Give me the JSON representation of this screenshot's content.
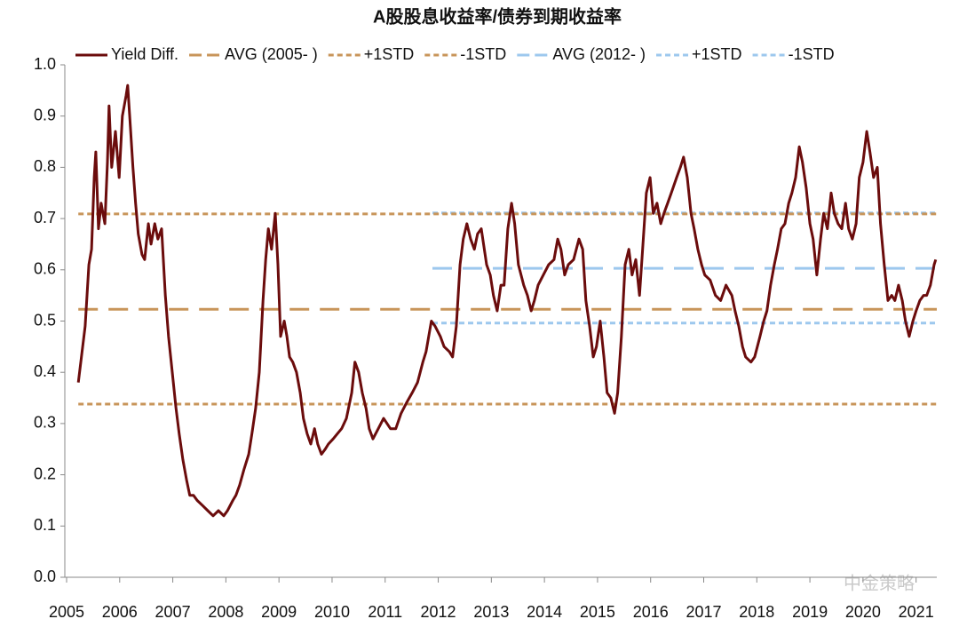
{
  "chart_data": {
    "type": "line",
    "title": "A股股息收益率/债券到期收益率",
    "watermark": "中金策略",
    "xlim": [
      2005,
      2021.39
    ],
    "xticks": [
      2005,
      2006,
      2007,
      2008,
      2009,
      2010,
      2011,
      2012,
      2013,
      2014,
      2015,
      2016,
      2017,
      2018,
      2019,
      2020,
      2021
    ],
    "ylim": [
      0,
      1
    ],
    "yticks": [
      {
        "value": 0,
        "label": "0.0"
      },
      0.1,
      0.2,
      0.3,
      0.4,
      0.5,
      0.6,
      0.7,
      0.8,
      0.9,
      {
        "value": 1,
        "label": "1.0"
      }
    ],
    "grid": false,
    "legend": "top",
    "series": [
      {
        "name": "Yield Diff.",
        "color": "#6b0c0c",
        "style": "solid",
        "x": [
          2005.22,
          2005.28,
          2005.35,
          2005.42,
          2005.47,
          2005.52,
          2005.55,
          2005.6,
          2005.65,
          2005.72,
          2005.77,
          2005.8,
          2005.85,
          2005.92,
          2005.99,
          2006.05,
          2006.12,
          2006.15,
          2006.2,
          2006.25,
          2006.3,
          2006.35,
          2006.42,
          2006.47,
          2006.54,
          2006.59,
          2006.66,
          2006.72,
          2006.79,
          2006.86,
          2006.92,
          2006.99,
          2007.06,
          2007.12,
          2007.19,
          2007.26,
          2007.32,
          2007.39,
          2007.46,
          2007.56,
          2007.66,
          2007.76,
          2007.86,
          2007.96,
          2008.03,
          2008.13,
          2008.19,
          2008.26,
          2008.34,
          2008.43,
          2008.49,
          2008.56,
          2008.63,
          2008.7,
          2008.75,
          2008.8,
          2008.86,
          2008.93,
          2008.98,
          2009.03,
          2009.1,
          2009.15,
          2009.2,
          2009.26,
          2009.33,
          2009.4,
          2009.46,
          2009.53,
          2009.6,
          2009.67,
          2009.73,
          2009.8,
          2009.87,
          2009.93,
          2010.02,
          2010.1,
          2010.18,
          2010.27,
          2010.37,
          2010.43,
          2010.5,
          2010.57,
          2010.64,
          2010.7,
          2010.77,
          2010.87,
          2010.97,
          2011.1,
          2011.2,
          2011.3,
          2011.4,
          2011.51,
          2011.61,
          2011.71,
          2011.77,
          2011.87,
          2011.94,
          2012.04,
          2012.11,
          2012.21,
          2012.27,
          2012.34,
          2012.41,
          2012.47,
          2012.54,
          2012.61,
          2012.68,
          2012.74,
          2012.81,
          2012.91,
          2012.98,
          2013.04,
          2013.11,
          2013.18,
          2013.24,
          2013.31,
          2013.38,
          2013.44,
          2013.51,
          2013.61,
          2013.68,
          2013.75,
          2013.81,
          2013.88,
          2013.98,
          2014.08,
          2014.18,
          2014.25,
          2014.31,
          2014.38,
          2014.45,
          2014.55,
          2014.65,
          2014.72,
          2014.78,
          2014.85,
          2014.92,
          2014.98,
          2015.05,
          2015.12,
          2015.18,
          2015.25,
          2015.32,
          2015.38,
          2015.45,
          2015.52,
          2015.59,
          2015.65,
          2015.72,
          2015.79,
          2015.85,
          2015.92,
          2015.99,
          2016.05,
          2016.12,
          2016.19,
          2016.25,
          2016.32,
          2016.39,
          2016.49,
          2016.56,
          2016.62,
          2016.69,
          2016.76,
          2016.82,
          2016.89,
          2016.96,
          2017.02,
          2017.12,
          2017.22,
          2017.32,
          2017.42,
          2017.53,
          2017.59,
          2017.66,
          2017.73,
          2017.79,
          2017.89,
          2017.96,
          2018.06,
          2018.13,
          2018.19,
          2018.26,
          2018.33,
          2018.39,
          2018.46,
          2018.53,
          2018.6,
          2018.66,
          2018.73,
          2018.8,
          2018.86,
          2018.93,
          2019.0,
          2019.06,
          2019.13,
          2019.2,
          2019.26,
          2019.33,
          2019.4,
          2019.46,
          2019.53,
          2019.6,
          2019.67,
          2019.73,
          2019.8,
          2019.87,
          2019.93,
          2020.0,
          2020.07,
          2020.13,
          2020.2,
          2020.27,
          2020.33,
          2020.4,
          2020.47,
          2020.54,
          2020.6,
          2020.67,
          2020.74,
          2020.8,
          2020.87,
          2020.94,
          2021.0,
          2021.07,
          2021.14,
          2021.2,
          2021.27,
          2021.34,
          2021.37
        ],
        "values": [
          0.38,
          0.43,
          0.49,
          0.61,
          0.64,
          0.78,
          0.83,
          0.68,
          0.73,
          0.69,
          0.81,
          0.92,
          0.8,
          0.87,
          0.78,
          0.9,
          0.94,
          0.96,
          0.88,
          0.8,
          0.73,
          0.67,
          0.63,
          0.62,
          0.69,
          0.65,
          0.69,
          0.66,
          0.68,
          0.55,
          0.47,
          0.4,
          0.33,
          0.28,
          0.23,
          0.19,
          0.16,
          0.16,
          0.15,
          0.14,
          0.13,
          0.12,
          0.13,
          0.12,
          0.13,
          0.15,
          0.16,
          0.18,
          0.21,
          0.24,
          0.28,
          0.33,
          0.4,
          0.54,
          0.62,
          0.68,
          0.64,
          0.71,
          0.61,
          0.47,
          0.5,
          0.47,
          0.43,
          0.42,
          0.4,
          0.36,
          0.31,
          0.28,
          0.26,
          0.29,
          0.26,
          0.24,
          0.25,
          0.26,
          0.27,
          0.28,
          0.29,
          0.31,
          0.36,
          0.42,
          0.4,
          0.36,
          0.33,
          0.29,
          0.27,
          0.29,
          0.31,
          0.29,
          0.29,
          0.32,
          0.34,
          0.36,
          0.38,
          0.42,
          0.44,
          0.5,
          0.49,
          0.47,
          0.45,
          0.44,
          0.43,
          0.49,
          0.61,
          0.66,
          0.69,
          0.66,
          0.64,
          0.67,
          0.68,
          0.61,
          0.59,
          0.55,
          0.52,
          0.57,
          0.57,
          0.68,
          0.73,
          0.69,
          0.61,
          0.57,
          0.55,
          0.52,
          0.54,
          0.57,
          0.59,
          0.61,
          0.62,
          0.66,
          0.64,
          0.59,
          0.61,
          0.62,
          0.66,
          0.64,
          0.54,
          0.49,
          0.43,
          0.45,
          0.5,
          0.43,
          0.36,
          0.35,
          0.32,
          0.36,
          0.47,
          0.61,
          0.64,
          0.59,
          0.62,
          0.55,
          0.64,
          0.75,
          0.78,
          0.71,
          0.73,
          0.69,
          0.71,
          0.73,
          0.75,
          0.78,
          0.8,
          0.82,
          0.78,
          0.71,
          0.68,
          0.64,
          0.61,
          0.59,
          0.58,
          0.55,
          0.54,
          0.57,
          0.55,
          0.52,
          0.49,
          0.45,
          0.43,
          0.42,
          0.43,
          0.47,
          0.5,
          0.52,
          0.57,
          0.61,
          0.64,
          0.68,
          0.69,
          0.73,
          0.75,
          0.78,
          0.84,
          0.81,
          0.76,
          0.69,
          0.66,
          0.59,
          0.66,
          0.71,
          0.68,
          0.75,
          0.71,
          0.69,
          0.68,
          0.73,
          0.68,
          0.66,
          0.69,
          0.78,
          0.81,
          0.87,
          0.83,
          0.78,
          0.8,
          0.69,
          0.61,
          0.54,
          0.55,
          0.54,
          0.57,
          0.54,
          0.5,
          0.47,
          0.5,
          0.52,
          0.54,
          0.55,
          0.55,
          0.57,
          0.61,
          0.62
        ]
      },
      {
        "name": "AVG (2005- )",
        "color": "#c8955a",
        "style": "long-dash",
        "x": [
          2005.22,
          2021.39
        ],
        "values": [
          0.523,
          0.523
        ]
      },
      {
        "name": "+1STD",
        "color": "#c8955a",
        "style": "dash",
        "x": [
          2005.22,
          2021.39
        ],
        "values": [
          0.709,
          0.709
        ]
      },
      {
        "name": "-1STD",
        "color": "#c8955a",
        "style": "dash",
        "x": [
          2005.22,
          2021.39
        ],
        "values": [
          0.338,
          0.338
        ]
      },
      {
        "name": "AVG (2012- )",
        "color": "#9dc8ee",
        "style": "long-dash",
        "x": [
          2011.89,
          2021.39
        ],
        "values": [
          0.603,
          0.603
        ]
      },
      {
        "name": "+1STD",
        "color": "#9dc8ee",
        "style": "dash",
        "x": [
          2011.89,
          2021.39
        ],
        "values": [
          0.711,
          0.711
        ]
      },
      {
        "name": "-1STD",
        "color": "#9dc8ee",
        "style": "dash",
        "x": [
          2011.89,
          2021.39
        ],
        "values": [
          0.496,
          0.496
        ]
      }
    ]
  }
}
